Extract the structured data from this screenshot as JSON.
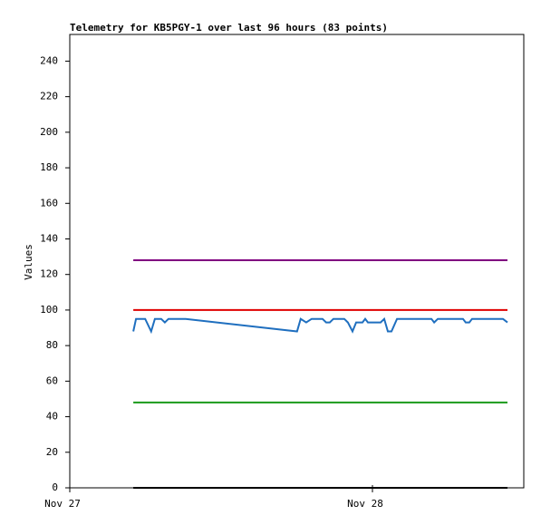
{
  "chart_data": {
    "type": "line",
    "title": "Telemetry for KB5PGY-1 over last 96 hours (83 points)",
    "y_label": "Values",
    "xlim": [
      0,
      1.5
    ],
    "xticks": [
      {
        "value": 0,
        "label": "Nov 27"
      },
      {
        "value": 1,
        "label": "Nov 28"
      }
    ],
    "ylim": [
      0,
      255
    ],
    "yticks": [
      0,
      20,
      40,
      60,
      80,
      100,
      120,
      140,
      160,
      180,
      200,
      220,
      240
    ],
    "series": [
      {
        "color": "#800080",
        "x": [
          0.21,
          1.446
        ],
        "values": [
          128,
          128
        ]
      },
      {
        "color": "#e00000",
        "x": [
          0.21,
          1.446
        ],
        "values": [
          100,
          100
        ]
      },
      {
        "color": "#1a9a1a",
        "x": [
          0.21,
          1.446
        ],
        "values": [
          48,
          48
        ]
      },
      {
        "color": "#000000",
        "x": [
          0.21,
          1.446
        ],
        "values": [
          0,
          0
        ]
      },
      {
        "color": "#1f6fbf",
        "x": [
          0.21,
          0.219,
          0.249,
          0.269,
          0.281,
          0.302,
          0.314,
          0.326,
          0.383,
          0.751,
          0.763,
          0.781,
          0.799,
          0.835,
          0.847,
          0.859,
          0.871,
          0.907,
          0.919,
          0.934,
          0.946,
          0.967,
          0.976,
          0.985,
          1.027,
          1.039,
          1.051,
          1.063,
          1.081,
          1.195,
          1.204,
          1.216,
          1.299,
          1.308,
          1.32,
          1.329,
          1.431,
          1.446
        ],
        "values": [
          88,
          95,
          95,
          88,
          95,
          95,
          93,
          95,
          95,
          88,
          95,
          93,
          95,
          95,
          93,
          93,
          95,
          95,
          93,
          88,
          93,
          93,
          95,
          93,
          93,
          95,
          88,
          88,
          95,
          95,
          93,
          95,
          95,
          93,
          93,
          95,
          95,
          93
        ]
      }
    ]
  }
}
